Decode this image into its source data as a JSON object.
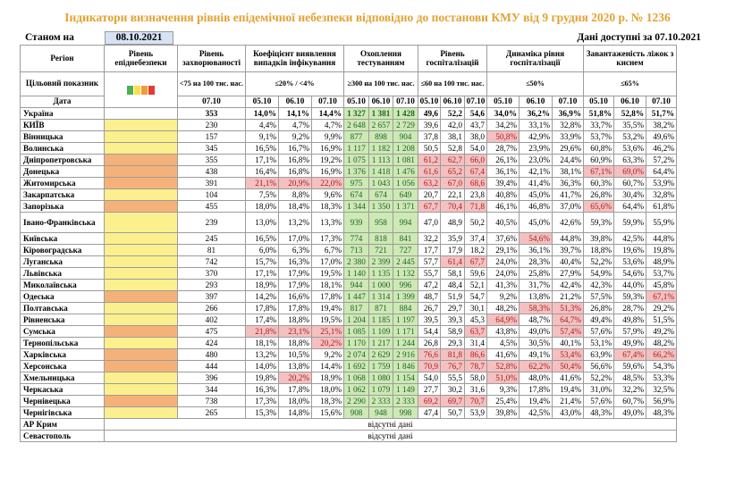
{
  "title": "Індикатори визначення рівнів епідемічної небезпеки відповідно до постанови КМУ від 9 грудня 2020 р. № 1236",
  "status_label": "Станом на",
  "status_date": "08.10.2021",
  "data_available": "Дані доступні за  07.10.2021",
  "headers": {
    "region": "Регіон",
    "level": "Рівень епіднебезпеки",
    "incidence": "Рівень захворюваності",
    "positivity": "Коефіцієнт виявлення випадків інфікування",
    "testing": "Охоплення тестуванням",
    "hosp": "Рівень госпіталізацій",
    "hosp_dyn": "Динаміка рівня госпіталізації",
    "oxygen": "Завантаженість ліжок з киснем",
    "target_label": "Цільовий показник",
    "date_label": "Дата",
    "target_incidence": "<75 на 100 тис. нас.",
    "target_positivity": "≤20% / <4%",
    "target_testing": "≥300 на 100 тис. нас.",
    "target_hosp": "≤60 на 100 тис. нас.",
    "target_hosp_dyn": "≤50%",
    "target_oxygen": "≤65%",
    "d_incidence": "07.10",
    "dates": [
      "05.10",
      "06.10",
      "07.10"
    ]
  },
  "legend_colors": [
    "#4caf50",
    "#f7e04a",
    "#f29a3a",
    "#e53935"
  ],
  "colors": {
    "yellow": "#fbef8e",
    "orange": "#f4b27a",
    "green_bg": "#cde9b4",
    "pink_bg": "#f5c0c0",
    "title": "#e3a233"
  },
  "ukraine": {
    "name": "Україна",
    "inc": "353",
    "pos": [
      "14,0%",
      "14,1%",
      "14,4%"
    ],
    "test": [
      "1 327",
      "1 381",
      "1 428"
    ],
    "hosp": [
      "49,6",
      "52,2",
      "54,6"
    ],
    "dyn": [
      "34,0%",
      "36,2%",
      "36,9%"
    ],
    "oxy": [
      "51,8%",
      "52,8%",
      "51,7%"
    ]
  },
  "regions": [
    {
      "name": "КИЇВ",
      "lvl": "y",
      "inc": "230",
      "pos": [
        "4,4%",
        "4,7%",
        "4,7%"
      ],
      "test": [
        "2 648",
        "2 657",
        "2 729"
      ],
      "hosp": [
        "39,6",
        "42,0",
        "43,7"
      ],
      "dyn": [
        "34,2%",
        "33,1%",
        "32,8%"
      ],
      "oxy": [
        "33,7%",
        "35,5%",
        "38,2%"
      ]
    },
    {
      "name": "Вінницька",
      "lvl": "y",
      "inc": "157",
      "pos": [
        "9,1%",
        "9,2%",
        "9,9%"
      ],
      "test": [
        "877",
        "898",
        "904"
      ],
      "hosp": [
        "37,8",
        "38,1",
        "38,0"
      ],
      "dyn": [
        "50,8%",
        "42,9%",
        "33,9%"
      ],
      "oxy": [
        "53,7%",
        "53,2%",
        "49,6%"
      ]
    },
    {
      "name": "Волинська",
      "lvl": "y",
      "inc": "345",
      "pos": [
        "16,5%",
        "16,7%",
        "16,9%"
      ],
      "test": [
        "1 117",
        "1 182",
        "1 208"
      ],
      "hosp": [
        "50,5",
        "52,8",
        "54,0"
      ],
      "dyn": [
        "28,7%",
        "23,9%",
        "29,6%"
      ],
      "oxy": [
        "60,8%",
        "53,6%",
        "46,2%"
      ]
    },
    {
      "name": "Дніпропетровська",
      "lvl": "o",
      "inc": "355",
      "pos": [
        "17,1%",
        "16,8%",
        "19,2%"
      ],
      "test": [
        "1 075",
        "1 113",
        "1 081"
      ],
      "hosp": [
        "61,2",
        "62,7",
        "66,0"
      ],
      "dyn": [
        "26,1%",
        "23,0%",
        "24,4%"
      ],
      "oxy": [
        "60,9%",
        "63,3%",
        "57,2%"
      ]
    },
    {
      "name": "Донецька",
      "lvl": "o",
      "inc": "438",
      "pos": [
        "16,4%",
        "16,8%",
        "16,9%"
      ],
      "test": [
        "1 376",
        "1 418",
        "1 476"
      ],
      "hosp": [
        "61,6",
        "65,2",
        "67,4"
      ],
      "dyn": [
        "36,1%",
        "42,1%",
        "38,1%"
      ],
      "oxy": [
        "67,1%",
        "69,0%",
        "64,4%"
      ]
    },
    {
      "name": "Житомирська",
      "lvl": "o",
      "inc": "391",
      "pos": [
        "21,1%",
        "20,9%",
        "22,0%"
      ],
      "test": [
        "975",
        "1 043",
        "1 056"
      ],
      "hosp": [
        "63,2",
        "67,0",
        "68,6"
      ],
      "dyn": [
        "39,4%",
        "41,4%",
        "36,3%"
      ],
      "oxy": [
        "60,3%",
        "60,7%",
        "53,9%"
      ]
    },
    {
      "name": "Закарпатська",
      "lvl": "y",
      "inc": "104",
      "pos": [
        "7,5%",
        "8,8%",
        "9,6%"
      ],
      "test": [
        "674",
        "674",
        "649"
      ],
      "hosp": [
        "20,7",
        "22,1",
        "23,8"
      ],
      "dyn": [
        "40,8%",
        "45,0%",
        "41,7%"
      ],
      "oxy": [
        "26,8%",
        "30,4%",
        "32,8%"
      ]
    },
    {
      "name": "Запорізька",
      "lvl": "o",
      "inc": "455",
      "pos": [
        "18,0%",
        "18,4%",
        "18,3%"
      ],
      "test": [
        "1 344",
        "1 350",
        "1 371"
      ],
      "hosp": [
        "67,7",
        "70,4",
        "71,8"
      ],
      "dyn": [
        "46,1%",
        "46,8%",
        "37,0%"
      ],
      "oxy": [
        "65,6%",
        "64,4%",
        "61,8%"
      ]
    },
    {
      "name": "Івано-Франківська",
      "lvl": "y",
      "tall": true,
      "inc": "239",
      "pos": [
        "13,0%",
        "13,2%",
        "13,3%"
      ],
      "test": [
        "939",
        "958",
        "994"
      ],
      "hosp": [
        "47,0",
        "48,9",
        "50,2"
      ],
      "dyn": [
        "40,5%",
        "45,0%",
        "42,6%"
      ],
      "oxy": [
        "59,3%",
        "59,9%",
        "55,9%"
      ]
    },
    {
      "name": "Київська",
      "lvl": "y",
      "inc": "245",
      "pos": [
        "16,5%",
        "17,0%",
        "17,3%"
      ],
      "test": [
        "774",
        "818",
        "841"
      ],
      "hosp": [
        "32,2",
        "35,9",
        "37,4"
      ],
      "dyn": [
        "37,6%",
        "54,6%",
        "44,8%"
      ],
      "oxy": [
        "39,8%",
        "42,5%",
        "44,8%"
      ]
    },
    {
      "name": "Кіровоградська",
      "lvl": "y",
      "inc": "81",
      "pos": [
        "6,0%",
        "6,3%",
        "6,7%"
      ],
      "test": [
        "713",
        "721",
        "727"
      ],
      "hosp": [
        "17,7",
        "17,9",
        "18,2"
      ],
      "dyn": [
        "29,1%",
        "36,1%",
        "39,7%"
      ],
      "oxy": [
        "18,8%",
        "19,6%",
        "19,8%"
      ]
    },
    {
      "name": "Луганська",
      "lvl": "y",
      "inc": "742",
      "pos": [
        "15,7%",
        "16,3%",
        "17,0%"
      ],
      "test": [
        "2 380",
        "2 399",
        "2 445"
      ],
      "hosp": [
        "57,7",
        "61,4",
        "67,7"
      ],
      "dyn": [
        "24,0%",
        "28,3%",
        "40,4%"
      ],
      "oxy": [
        "52,2%",
        "53,6%",
        "48,9%"
      ]
    },
    {
      "name": "Львівська",
      "lvl": "y",
      "inc": "370",
      "pos": [
        "17,1%",
        "17,9%",
        "19,5%"
      ],
      "test": [
        "1 140",
        "1 135",
        "1 132"
      ],
      "hosp": [
        "55,7",
        "58,1",
        "59,6"
      ],
      "dyn": [
        "24,0%",
        "25,8%",
        "27,9%"
      ],
      "oxy": [
        "54,9%",
        "54,6%",
        "53,7%"
      ]
    },
    {
      "name": "Миколаївська",
      "lvl": "y",
      "inc": "293",
      "pos": [
        "18,9%",
        "17,9%",
        "18,1%"
      ],
      "test": [
        "944",
        "1 000",
        "996"
      ],
      "hosp": [
        "47,2",
        "48,4",
        "52,1"
      ],
      "dyn": [
        "41,3%",
        "31,7%",
        "42,4%"
      ],
      "oxy": [
        "42,3%",
        "44,0%",
        "45,8%"
      ]
    },
    {
      "name": "Одеська",
      "lvl": "o",
      "inc": "397",
      "pos": [
        "14,2%",
        "16,6%",
        "17,8%"
      ],
      "test": [
        "1 447",
        "1 314",
        "1 399"
      ],
      "hosp": [
        "48,7",
        "51,9",
        "54,7"
      ],
      "dyn": [
        "9,2%",
        "13,8%",
        "21,2%"
      ],
      "oxy": [
        "57,5%",
        "59,3%",
        "67,1%"
      ]
    },
    {
      "name": "Полтавська",
      "lvl": "y",
      "inc": "266",
      "pos": [
        "17,8%",
        "17,8%",
        "19,4%"
      ],
      "test": [
        "817",
        "871",
        "884"
      ],
      "hosp": [
        "26,7",
        "29,7",
        "30,1"
      ],
      "dyn": [
        "48,2%",
        "58,3%",
        "51,3%"
      ],
      "oxy": [
        "26,8%",
        "28,7%",
        "29,2%"
      ]
    },
    {
      "name": "Рівненська",
      "lvl": "y",
      "inc": "402",
      "pos": [
        "17,4%",
        "18,8%",
        "19,5%"
      ],
      "test": [
        "1 204",
        "1 185",
        "1 197"
      ],
      "hosp": [
        "39,5",
        "39,3",
        "45,3"
      ],
      "dyn": [
        "64,9%",
        "48,7%",
        "64,7%"
      ],
      "oxy": [
        "49,4%",
        "49,8%",
        "51,5%"
      ]
    },
    {
      "name": "Сумська",
      "lvl": "o",
      "inc": "475",
      "pos": [
        "21,8%",
        "23,1%",
        "25,1%"
      ],
      "test": [
        "1 085",
        "1 109",
        "1 171"
      ],
      "hosp": [
        "54,4",
        "58,9",
        "63,7"
      ],
      "dyn": [
        "43,8%",
        "49,0%",
        "57,4%"
      ],
      "oxy": [
        "57,6%",
        "57,9%",
        "49,2%"
      ]
    },
    {
      "name": "Тернопільська",
      "lvl": "y",
      "inc": "424",
      "pos": [
        "18,1%",
        "18,8%",
        "20,2%"
      ],
      "test": [
        "1 170",
        "1 217",
        "1 244"
      ],
      "hosp": [
        "26,8",
        "29,3",
        "31,4"
      ],
      "dyn": [
        "4,5%",
        "30,5%",
        "40,1%"
      ],
      "oxy": [
        "53,1%",
        "49,9%",
        "48,2%"
      ]
    },
    {
      "name": "Харківська",
      "lvl": "o",
      "inc": "480",
      "pos": [
        "13,2%",
        "10,5%",
        "9,2%"
      ],
      "test": [
        "2 074",
        "2 629",
        "2 916"
      ],
      "hosp": [
        "76,6",
        "81,8",
        "86,6"
      ],
      "dyn": [
        "41,6%",
        "49,1%",
        "53,4%"
      ],
      "oxy": [
        "63,9%",
        "67,4%",
        "66,2%"
      ]
    },
    {
      "name": "Херсонська",
      "lvl": "o",
      "inc": "444",
      "pos": [
        "14,0%",
        "13,8%",
        "14,4%"
      ],
      "test": [
        "1 692",
        "1 759",
        "1 846"
      ],
      "hosp": [
        "70,9",
        "76,7",
        "78,7"
      ],
      "dyn": [
        "52,8%",
        "62,2%",
        "50,4%"
      ],
      "oxy": [
        "56,6%",
        "59,6%",
        "54,3%"
      ]
    },
    {
      "name": "Хмельницька",
      "lvl": "y",
      "inc": "396",
      "pos": [
        "19,8%",
        "20,2%",
        "18,9%"
      ],
      "test": [
        "1 068",
        "1 080",
        "1 154"
      ],
      "hosp": [
        "54,0",
        "55,5",
        "58,0"
      ],
      "dyn": [
        "51,0%",
        "48,0%",
        "41,6%"
      ],
      "oxy": [
        "52,2%",
        "48,5%",
        "53,3%"
      ]
    },
    {
      "name": "Черкаська",
      "lvl": "y",
      "inc": "344",
      "pos": [
        "16,3%",
        "17,8%",
        "18,0%"
      ],
      "test": [
        "1 062",
        "1 079",
        "1 149"
      ],
      "hosp": [
        "27,7",
        "30,2",
        "31,6"
      ],
      "dyn": [
        "9,3%",
        "17,8%",
        "19,4%"
      ],
      "oxy": [
        "31,0%",
        "32,2%",
        "32,5%"
      ]
    },
    {
      "name": "Чернівецька",
      "lvl": "o",
      "inc": "738",
      "pos": [
        "17,3%",
        "18,0%",
        "18,3%"
      ],
      "test": [
        "2 290",
        "2 333",
        "2 333"
      ],
      "hosp": [
        "69,2",
        "69,7",
        "70,7"
      ],
      "dyn": [
        "25,4%",
        "19,4%",
        "21,4%"
      ],
      "oxy": [
        "57,6%",
        "60,7%",
        "56,9%"
      ]
    },
    {
      "name": "Чернігівська",
      "lvl": "y",
      "inc": "265",
      "pos": [
        "15,3%",
        "14,8%",
        "15,6%"
      ],
      "test": [
        "908",
        "948",
        "998"
      ],
      "hosp": [
        "47,4",
        "50,7",
        "53,9"
      ],
      "dyn": [
        "39,8%",
        "42,5%",
        "43,0%"
      ],
      "oxy": [
        "48,3%",
        "49,0%",
        "48,3%"
      ]
    }
  ],
  "missing": [
    {
      "name": "АР Крим",
      "text": "відсутні дані"
    },
    {
      "name": "Севастополь",
      "text": "відсутні дані"
    }
  ]
}
